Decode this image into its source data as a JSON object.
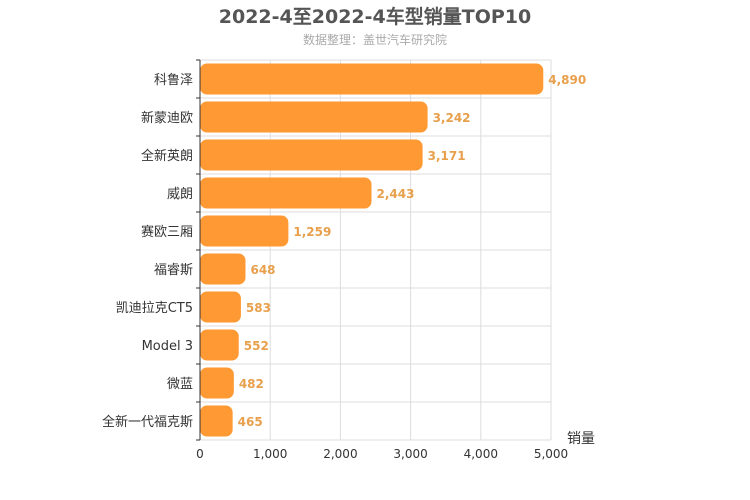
{
  "chart_data": {
    "type": "bar",
    "orientation": "horizontal",
    "title": "2022-4至2022-4车型销量TOP10",
    "subtitle": "数据整理：盖世汽车研究院",
    "xlabel": "销量",
    "ylabel": "",
    "xlim": [
      0,
      5000
    ],
    "xticks": [
      0,
      1000,
      2000,
      3000,
      4000,
      5000
    ],
    "xtick_labels": [
      "0",
      "1,000",
      "2,000",
      "3,000",
      "4,000",
      "5,000"
    ],
    "grid": true,
    "legend": "none",
    "bar_color": "#ff9933",
    "label_color": "#e8a04c",
    "categories": [
      "科鲁泽",
      "新蒙迪欧",
      "全新英朗",
      "威朗",
      "赛欧三厢",
      "福睿斯",
      "凯迪拉克CT5",
      "Model 3",
      "微蓝",
      "全新一代福克斯"
    ],
    "values": [
      4890,
      3242,
      3171,
      2443,
      1259,
      648,
      583,
      552,
      482,
      465
    ],
    "value_labels": [
      "4,890",
      "3,242",
      "3,171",
      "2,443",
      "1,259",
      "648",
      "583",
      "552",
      "482",
      "465"
    ]
  }
}
